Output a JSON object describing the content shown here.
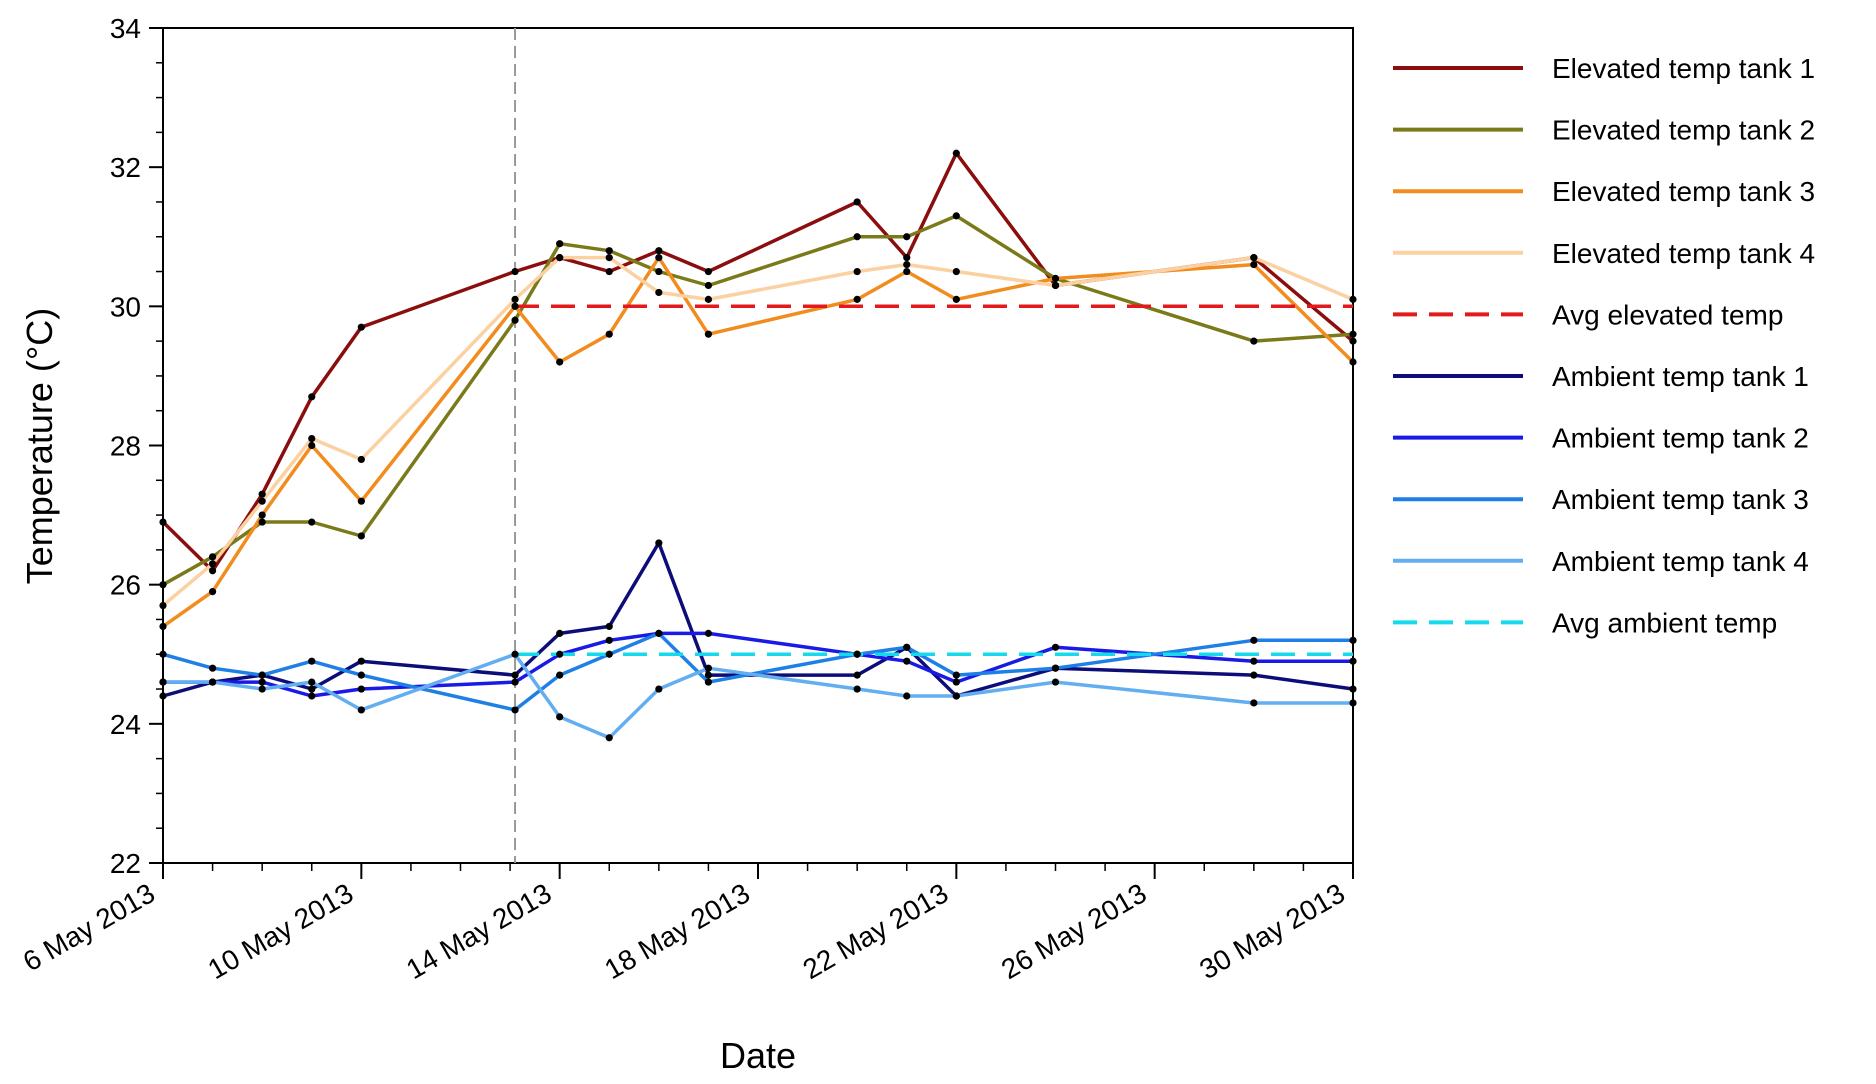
{
  "chart_data": {
    "type": "line",
    "title": "",
    "xlabel": "Date",
    "ylabel": "Temperature (°C)",
    "x_unit": "days since 6 May 2013",
    "xlim": [
      0,
      24
    ],
    "ylim": [
      22,
      34
    ],
    "yticks": [
      22,
      24,
      26,
      28,
      30,
      32,
      34
    ],
    "xticks": [
      {
        "day": 0,
        "label": "6 May 2013"
      },
      {
        "day": 4,
        "label": "10 May 2013"
      },
      {
        "day": 8,
        "label": "14 May 2013"
      },
      {
        "day": 12,
        "label": "18 May 2013"
      },
      {
        "day": 16,
        "label": "22 May 2013"
      },
      {
        "day": 20,
        "label": "26 May 2013"
      },
      {
        "day": 24,
        "label": "30 May 2013"
      }
    ],
    "vline_day": 7.1,
    "legend_position": "right",
    "series": [
      {
        "name": "Elevated temp tank 1",
        "color": "#8b0d0d",
        "dashed": false,
        "markers": true,
        "x": [
          0,
          1,
          2,
          3,
          4,
          7.1,
          8,
          9,
          10,
          11,
          14,
          15,
          16,
          18,
          22,
          24
        ],
        "y": [
          26.9,
          26.2,
          27.3,
          28.7,
          29.7,
          30.5,
          30.7,
          30.5,
          30.8,
          30.5,
          31.5,
          30.7,
          32.2,
          30.3,
          30.7,
          29.5
        ]
      },
      {
        "name": "Elevated temp tank 2",
        "color": "#7a7a1a",
        "dashed": false,
        "markers": true,
        "x": [
          0,
          1,
          2,
          3,
          4,
          7.1,
          8,
          9,
          10,
          11,
          14,
          15,
          16,
          18,
          22,
          24
        ],
        "y": [
          26.0,
          26.4,
          26.9,
          26.9,
          26.7,
          29.8,
          30.9,
          30.8,
          30.5,
          30.3,
          31.0,
          31.0,
          31.3,
          30.4,
          29.5,
          29.6
        ]
      },
      {
        "name": "Elevated temp tank 3",
        "color": "#f28c1e",
        "dashed": false,
        "markers": true,
        "x": [
          0,
          1,
          2,
          3,
          4,
          7.1,
          8,
          9,
          10,
          11,
          14,
          15,
          16,
          18,
          22,
          24
        ],
        "y": [
          25.4,
          25.9,
          27.0,
          28.0,
          27.2,
          30.0,
          29.2,
          29.6,
          30.7,
          29.6,
          30.1,
          30.5,
          30.1,
          30.4,
          30.6,
          29.2
        ]
      },
      {
        "name": "Elevated temp tank 4",
        "color": "#fbd1a2",
        "dashed": false,
        "markers": true,
        "x": [
          0,
          1,
          2,
          3,
          4,
          7.1,
          8,
          9,
          10,
          11,
          14,
          15,
          16,
          18,
          22,
          24
        ],
        "y": [
          25.7,
          26.3,
          27.2,
          28.1,
          27.8,
          30.1,
          30.7,
          30.7,
          30.2,
          30.1,
          30.5,
          30.6,
          30.5,
          30.3,
          30.7,
          30.1
        ]
      },
      {
        "name": "Avg elevated temp",
        "color": "#e31a1c",
        "dashed": true,
        "markers": false,
        "x": [
          7.1,
          24
        ],
        "y": [
          30.0,
          30.0
        ]
      },
      {
        "name": "Ambient temp tank 1",
        "color": "#0d0d7a",
        "dashed": false,
        "markers": true,
        "x": [
          0,
          1,
          2,
          3,
          4,
          7.1,
          8,
          9,
          10,
          11,
          14,
          15,
          16,
          18,
          22,
          24
        ],
        "y": [
          24.4,
          24.6,
          24.7,
          24.5,
          24.9,
          24.7,
          25.3,
          25.4,
          26.6,
          24.7,
          24.7,
          25.1,
          24.4,
          24.8,
          24.7,
          24.5
        ]
      },
      {
        "name": "Ambient temp tank 2",
        "color": "#1a1ae6",
        "dashed": false,
        "markers": true,
        "x": [
          0,
          1,
          2,
          3,
          4,
          7.1,
          8,
          9,
          10,
          11,
          14,
          15,
          16,
          18,
          22,
          24
        ],
        "y": [
          24.6,
          24.6,
          24.6,
          24.4,
          24.5,
          24.6,
          25.0,
          25.2,
          25.3,
          25.3,
          25.0,
          24.9,
          24.6,
          25.1,
          24.9,
          24.9
        ]
      },
      {
        "name": "Ambient temp tank 3",
        "color": "#1e7fe6",
        "dashed": false,
        "markers": true,
        "x": [
          0,
          1,
          2,
          3,
          4,
          7.1,
          8,
          9,
          10,
          11,
          14,
          15,
          16,
          18,
          22,
          24
        ],
        "y": [
          25.0,
          24.8,
          24.7,
          24.9,
          24.7,
          24.2,
          24.7,
          25.0,
          25.3,
          24.6,
          25.0,
          25.1,
          24.7,
          24.8,
          25.2,
          25.2
        ]
      },
      {
        "name": "Ambient temp tank 4",
        "color": "#62aef0",
        "dashed": false,
        "markers": true,
        "x": [
          0,
          1,
          2,
          3,
          4,
          7.1,
          8,
          9,
          10,
          11,
          14,
          15,
          16,
          18,
          22,
          24
        ],
        "y": [
          24.6,
          24.6,
          24.5,
          24.6,
          24.2,
          25.0,
          24.1,
          23.8,
          24.5,
          24.8,
          24.5,
          24.4,
          24.4,
          24.6,
          24.3,
          24.3
        ]
      },
      {
        "name": "Avg ambient temp",
        "color": "#17d9ec",
        "dashed": true,
        "markers": false,
        "x": [
          7.1,
          24
        ],
        "y": [
          25.0,
          25.0
        ]
      }
    ]
  }
}
